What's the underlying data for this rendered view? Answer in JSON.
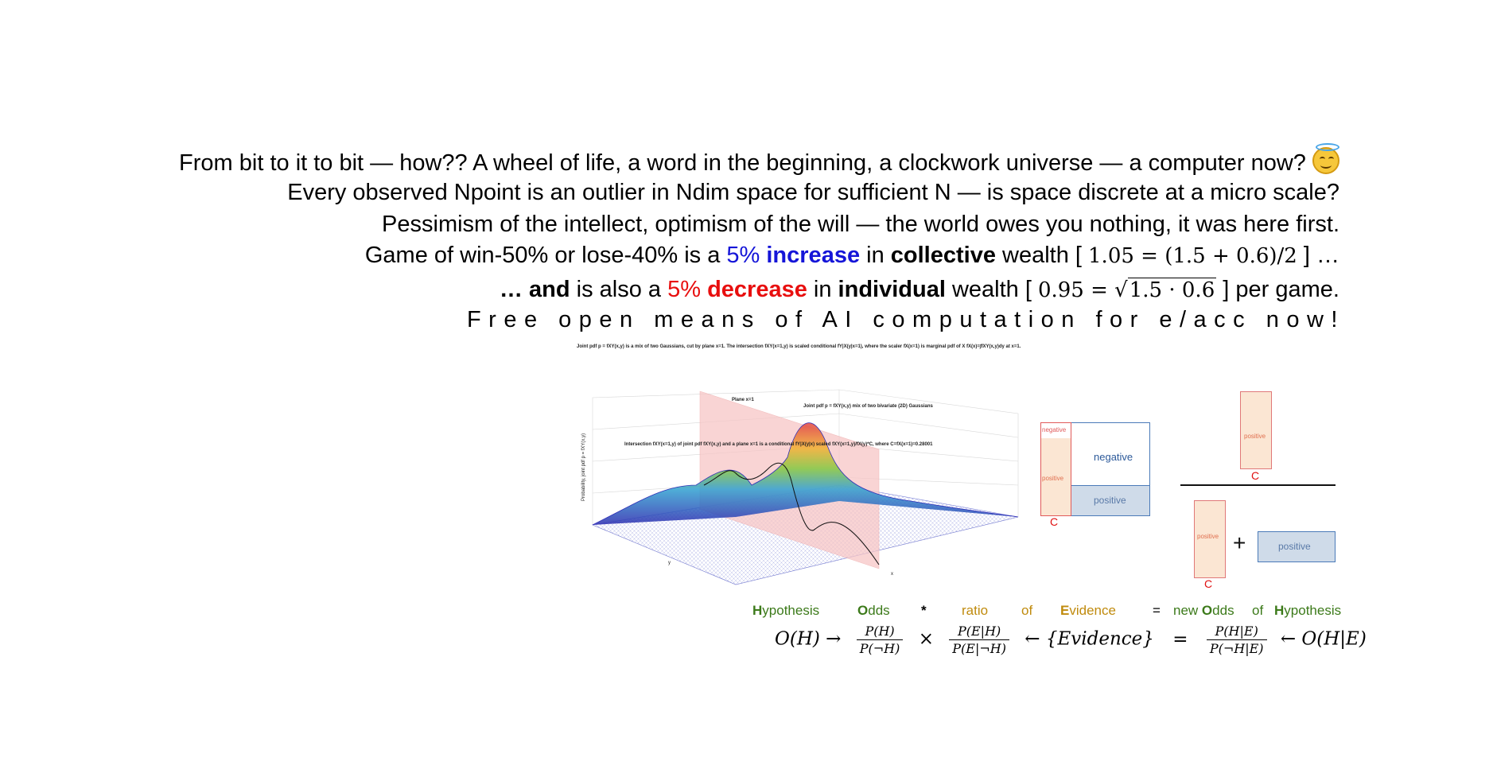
{
  "headline": {
    "line1": "From bit to it to bit — how?? A wheel of life, a word in the beginning, a clockwork universe — a computer now?",
    "line1_emoji": "smiling-face-with-halo-icon",
    "line2": "Every observed Npoint is an outlier in Ndim space for sufficient N — is space discrete at a micro scale?",
    "line3": "Pessimism of the intellect,  optimism of the will   —   the world owes you nothing,  it was here first.",
    "line4_a": "Game of win-50% or lose-40% is a ",
    "line4_b": "5% ",
    "line4_c": "increase",
    "line4_d": " in ",
    "line4_e": "collective",
    "line4_f": " wealth [ ",
    "line4_math": "1.05 = (1.5 + 0.6)/2",
    "line4_g": " ] …",
    "line5_a": "… and",
    "line5_b": " is also a ",
    "line5_c": "5% ",
    "line5_d": "decrease",
    "line5_e": " in ",
    "line5_f": "individual",
    "line5_g": " wealth [ ",
    "line5_math_a": "0.95 = ",
    "line5_math_b": "1.5 · 0.6",
    "line5_h": " ] per game.",
    "line6": "Free open means of AI computation for e/acc now!"
  },
  "plot3d": {
    "caption": "Joint pdf p = fXY(x,y) is a mix of two Gaussians, cut by plane x=1. The intersection fXY(x=1,y) is scaled conditional fY|X(y|x=1), where the scaler fX(x=1) is marginal pdf of X fX(x)=∫fXY(x,y)dy at x=1.",
    "plane_label": "Plane x=1",
    "joint_label": "Joint pdf p = fXY(x,y) mix of two bivariate (2D) Gaussians",
    "intersection_label": "Intersection fXY(x=1,y) of joint pdf fXY(x,y) and a plane x=1 is a conditional fY|X(y|x) scaled fXY(x=1,y)/fX(y)*C, where C=fX(x=1)=0.28001",
    "zlabel": "Probability, joint pdf p = fXY(x,y)",
    "xlabel": "x",
    "ylabel": "y"
  },
  "bayes_diagram": {
    "left_negative_small": "negative",
    "left_positive_small": "positive",
    "left_negative_big": "negative",
    "left_positive_big": "positive",
    "left_c": "C",
    "right_top_positive": "positive",
    "right_top_c": "C",
    "right_bottom_left_positive": "positive",
    "right_bottom_c": "C",
    "plus": "+",
    "right_bottom_right_positive": "positive"
  },
  "bayes_words": {
    "hyp_H": "H",
    "hyp_rest": "ypothesis",
    "odds_O": "O",
    "odds_rest": "dds",
    "star": "*",
    "ratio": "ratio",
    "of1": "of",
    "ev_E": "E",
    "ev_rest": "vidence",
    "eq": "=",
    "new": "new ",
    "new_O": "O",
    "new_rest": "dds",
    "of2": "of",
    "h2_H": "H",
    "h2_rest": "ypothesis"
  },
  "bayes_formula": {
    "oh": "O(H) →",
    "f1_num": "P(H)",
    "f1_den": "P(¬H)",
    "times": "×",
    "f2_num": "P(E|H)",
    "f2_den": "P(E|¬H)",
    "evidence": "← {Evidence}",
    "equals": "=",
    "f3_num": "P(H|E)",
    "f3_den": "P(¬H|E)",
    "result": "← O(H|E)"
  },
  "colors": {
    "blue": "#1515d8",
    "red": "#e80f0f",
    "green": "#3c7a1a",
    "gold": "#c08b0e",
    "box_blue": "#4a7ab8",
    "box_fill_blue": "#cfdbe9",
    "box_fill_peach": "#fbe6d3",
    "box_red": "#e05a5a"
  }
}
